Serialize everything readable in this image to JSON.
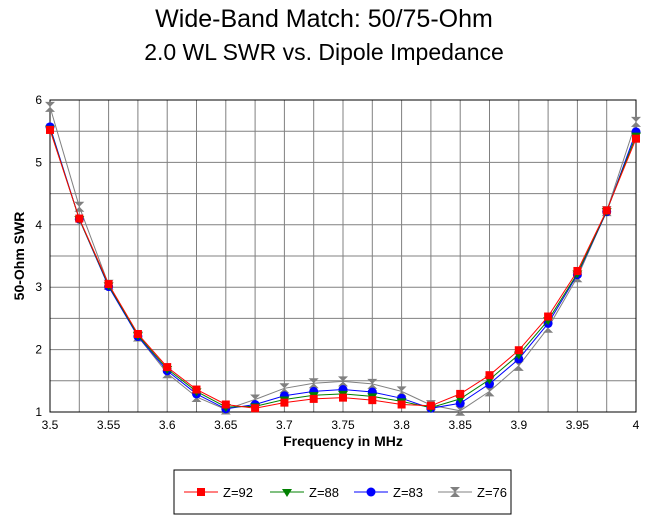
{
  "chart_data": {
    "type": "line",
    "title": "Wide-Band Match:  50/75-Ohm",
    "subtitle": "2.0 WL SWR vs. Dipole Impedance",
    "xlabel": "Frequency in MHz",
    "ylabel": "50-Ohm SWR",
    "xlim": [
      3.5,
      4.0
    ],
    "ylim": [
      1,
      6
    ],
    "x_ticks": [
      "3.5",
      "3.55",
      "3.6",
      "3.65",
      "3.7",
      "3.75",
      "3.8",
      "3.85",
      "3.9",
      "3.95",
      "4"
    ],
    "y_ticks": [
      "1",
      "2",
      "3",
      "4",
      "5",
      "6"
    ],
    "grid": true,
    "legend_position": "bottom",
    "x": [
      3.5,
      3.525,
      3.55,
      3.575,
      3.6,
      3.625,
      3.65,
      3.675,
      3.7,
      3.725,
      3.75,
      3.775,
      3.8,
      3.825,
      3.85,
      3.875,
      3.9,
      3.925,
      3.95,
      3.975,
      4.0
    ],
    "series": [
      {
        "name": "Z=92",
        "color": "#ff0000",
        "marker": "square",
        "values": [
          5.52,
          4.1,
          3.05,
          2.25,
          1.72,
          1.36,
          1.12,
          1.06,
          1.15,
          1.21,
          1.23,
          1.19,
          1.12,
          1.1,
          1.29,
          1.59,
          1.99,
          2.53,
          3.26,
          4.23,
          5.38
        ]
      },
      {
        "name": "Z=88",
        "color": "#008000",
        "marker": "triangle-down",
        "values": [
          5.54,
          4.09,
          3.03,
          2.23,
          1.69,
          1.33,
          1.08,
          1.09,
          1.2,
          1.27,
          1.29,
          1.25,
          1.17,
          1.07,
          1.21,
          1.52,
          1.92,
          2.47,
          3.22,
          4.22,
          5.43
        ]
      },
      {
        "name": "Z=83",
        "color": "#0000ff",
        "marker": "circle",
        "values": [
          5.57,
          4.09,
          3.01,
          2.21,
          1.66,
          1.29,
          1.05,
          1.12,
          1.26,
          1.33,
          1.36,
          1.32,
          1.22,
          1.06,
          1.14,
          1.45,
          1.85,
          2.42,
          3.2,
          4.21,
          5.49
        ]
      },
      {
        "name": "Z=76",
        "color": "#808080",
        "marker": "hourglass",
        "values": [
          5.89,
          4.29,
          3.04,
          2.21,
          1.62,
          1.24,
          1.04,
          1.2,
          1.38,
          1.46,
          1.49,
          1.45,
          1.33,
          1.11,
          1.02,
          1.33,
          1.74,
          2.35,
          3.16,
          4.22,
          5.65
        ]
      }
    ]
  }
}
